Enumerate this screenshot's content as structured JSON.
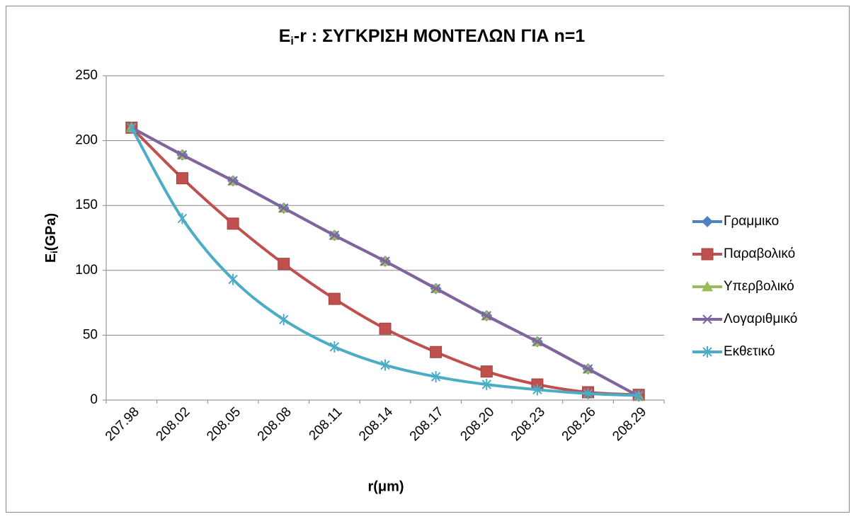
{
  "chart_data": {
    "type": "line",
    "title": [
      "E",
      "i",
      "-r : ΣΥΓΚΡΙΣΗ ΜΟΝΤΕΛΩΝ ΓΙΑ n=1"
    ],
    "title_color": "#ff0000",
    "x_label": "r(μm)",
    "y_label": [
      "E",
      "i",
      "(GPa)"
    ],
    "categories": [
      "207.98",
      "208.02",
      "208.05",
      "208.08",
      "208.11",
      "208.14",
      "208.17",
      "208.20",
      "208.23",
      "208.26",
      "208.29"
    ],
    "ylim": [
      0,
      250
    ],
    "yticks": [
      0,
      50,
      100,
      150,
      200,
      250
    ],
    "grid": true,
    "smooth": true,
    "legend": "right",
    "series": [
      {
        "name": "Γραμμικο",
        "color": "#4f81bd",
        "marker": "diamond",
        "values": [
          210,
          189,
          169,
          148,
          127,
          107,
          86,
          65,
          45,
          24,
          3
        ]
      },
      {
        "name": "Παραβολικό",
        "color": "#c0504d",
        "marker": "square",
        "values": [
          210,
          171,
          136,
          105,
          78,
          55,
          37,
          22,
          12,
          6,
          4
        ]
      },
      {
        "name": "Υπερβολικό",
        "color": "#9bbb59",
        "marker": "triangle",
        "values": [
          210,
          189,
          169,
          148,
          127,
          107,
          86,
          65,
          45,
          24,
          3
        ]
      },
      {
        "name": "Λογαριθμικό",
        "color": "#8064a2",
        "marker": "x",
        "values": [
          210,
          189,
          169,
          148,
          127,
          107,
          86,
          65,
          45,
          24,
          3
        ]
      },
      {
        "name": "Εκθετικό",
        "color": "#4bacc6",
        "marker": "star",
        "values": [
          210,
          140,
          93,
          62,
          41,
          27,
          18,
          12,
          8,
          5,
          3.5
        ]
      }
    ]
  }
}
